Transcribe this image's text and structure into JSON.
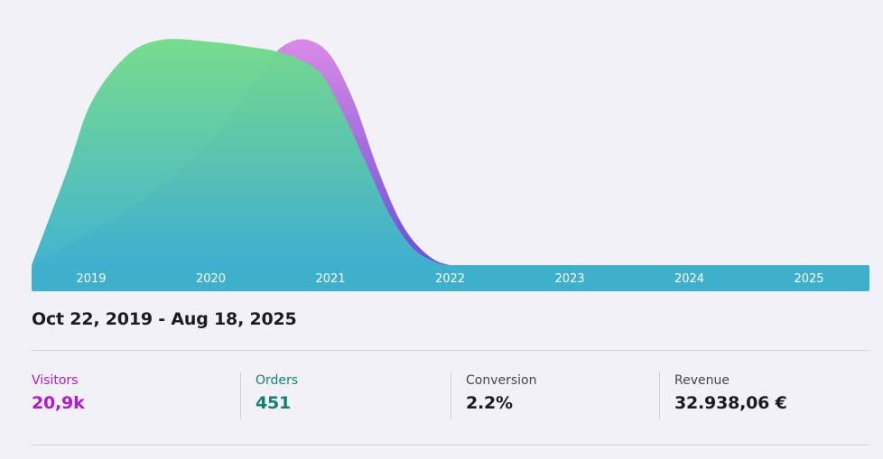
{
  "chart_data": {
    "type": "area",
    "x_ticks": [
      "2019",
      "2020",
      "2021",
      "2022",
      "2023",
      "2024",
      "2025"
    ],
    "series": [
      {
        "color": "#a655e0",
        "x": [
          2018.5,
          2019.0,
          2019.5,
          2020.0,
          2020.4,
          2020.6,
          2020.8,
          2021.0,
          2021.2,
          2021.4,
          2021.6,
          2021.8,
          2022.0,
          2022.3,
          2023.0,
          2024.0,
          2025.0,
          2025.5
        ],
        "values": [
          0,
          0.15,
          0.32,
          0.55,
          0.85,
          0.97,
          1.0,
          0.93,
          0.72,
          0.42,
          0.18,
          0.05,
          0.0,
          0,
          0,
          0,
          0,
          0
        ]
      },
      {
        "color": "#6fd98a",
        "x": [
          2018.5,
          2018.8,
          2019.0,
          2019.3,
          2019.6,
          2020.0,
          2020.3,
          2020.6,
          2020.9,
          2021.1,
          2021.3,
          2021.5,
          2021.7,
          2021.9,
          2022.0,
          2022.3,
          2023.0,
          2024.0,
          2025.0,
          2025.5
        ],
        "values": [
          0,
          0.42,
          0.72,
          0.93,
          1.0,
          0.99,
          0.97,
          0.94,
          0.86,
          0.68,
          0.45,
          0.22,
          0.07,
          0.01,
          0,
          0,
          0,
          0,
          0,
          0
        ]
      }
    ],
    "gradient_bottom_color": "#3fb0cc"
  },
  "summary": {
    "date_range": "Oct 22, 2019 - Aug 18, 2025"
  },
  "stats": [
    {
      "label": "Visitors",
      "value": "20,9k",
      "color": "#b01ad0"
    },
    {
      "label": "Orders",
      "value": "451",
      "color": "#137f76"
    },
    {
      "label": "Conversion",
      "value": "2.2%",
      "color": "#1b1b26"
    },
    {
      "label": "Revenue",
      "value": "32.938,06 €",
      "color": "#1b1b26"
    }
  ]
}
